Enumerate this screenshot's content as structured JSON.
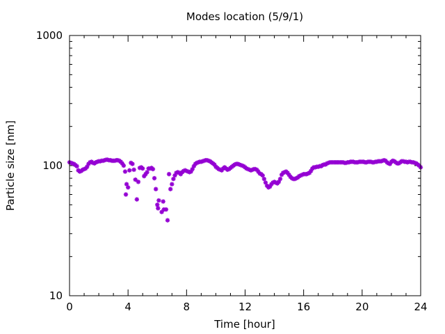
{
  "chart_data": {
    "type": "scatter",
    "title": "Modes location (5/9/1)",
    "xlabel": "Time [hour]",
    "ylabel": "Particle size [nm]",
    "xlim": [
      0,
      24
    ],
    "ylim": [
      10,
      1000
    ],
    "yscale": "log",
    "x_ticks": [
      0,
      4,
      8,
      12,
      16,
      20,
      24
    ],
    "x_tick_labels": [
      "0",
      "4",
      "8",
      "12",
      "16",
      "20",
      "24"
    ],
    "y_ticks": [
      10,
      100,
      1000
    ],
    "y_tick_labels": [
      "10",
      "100",
      "1000"
    ],
    "grid": false,
    "marker_color": "#9400d3",
    "marker": "asterisk",
    "series": [
      {
        "points": [
          [
            0.0,
            106
          ],
          [
            0.1,
            105
          ],
          [
            0.2,
            104
          ],
          [
            0.3,
            103
          ],
          [
            0.4,
            101
          ],
          [
            0.5,
            99
          ],
          [
            0.6,
            92
          ],
          [
            0.7,
            90
          ],
          [
            0.8,
            91
          ],
          [
            0.9,
            93
          ],
          [
            1.0,
            94
          ],
          [
            1.1,
            95
          ],
          [
            1.2,
            98
          ],
          [
            1.3,
            103
          ],
          [
            1.4,
            106
          ],
          [
            1.5,
            107
          ],
          [
            1.6,
            105
          ],
          [
            1.7,
            104
          ],
          [
            1.8,
            106
          ],
          [
            1.9,
            107
          ],
          [
            2.0,
            108
          ],
          [
            2.1,
            108
          ],
          [
            2.2,
            109
          ],
          [
            2.3,
            109
          ],
          [
            2.4,
            110
          ],
          [
            2.5,
            111
          ],
          [
            2.6,
            111
          ],
          [
            2.7,
            110
          ],
          [
            2.8,
            110
          ],
          [
            2.9,
            109
          ],
          [
            3.0,
            109
          ],
          [
            3.1,
            109
          ],
          [
            3.2,
            110
          ],
          [
            3.3,
            110
          ],
          [
            3.4,
            109
          ],
          [
            3.5,
            107
          ],
          [
            3.6,
            104
          ],
          [
            3.7,
            100
          ],
          [
            3.8,
            90
          ],
          [
            3.9,
            72
          ],
          [
            3.85,
            60
          ],
          [
            4.0,
            68
          ],
          [
            4.1,
            92
          ],
          [
            4.2,
            105
          ],
          [
            4.3,
            103
          ],
          [
            4.4,
            93
          ],
          [
            4.5,
            78
          ],
          [
            4.6,
            55
          ],
          [
            4.7,
            75
          ],
          [
            4.8,
            96
          ],
          [
            4.9,
            97
          ],
          [
            5.0,
            95
          ],
          [
            5.1,
            83
          ],
          [
            5.2,
            86
          ],
          [
            5.3,
            89
          ],
          [
            5.4,
            95
          ],
          [
            5.5,
            95
          ],
          [
            5.6,
            96
          ],
          [
            5.7,
            94
          ],
          [
            5.8,
            80
          ],
          [
            5.9,
            66
          ],
          [
            6.0,
            50
          ],
          [
            6.05,
            47
          ],
          [
            6.1,
            54
          ],
          [
            6.3,
            44
          ],
          [
            6.4,
            53
          ],
          [
            6.45,
            46
          ],
          [
            6.6,
            46
          ],
          [
            6.7,
            38
          ],
          [
            6.8,
            86
          ],
          [
            6.9,
            66
          ],
          [
            7.0,
            72
          ],
          [
            7.1,
            79
          ],
          [
            7.2,
            84
          ],
          [
            7.3,
            88
          ],
          [
            7.4,
            89
          ],
          [
            7.5,
            88
          ],
          [
            7.6,
            86
          ],
          [
            7.7,
            89
          ],
          [
            7.8,
            91
          ],
          [
            7.9,
            92
          ],
          [
            8.0,
            91
          ],
          [
            8.1,
            90
          ],
          [
            8.2,
            89
          ],
          [
            8.3,
            90
          ],
          [
            8.4,
            94
          ],
          [
            8.5,
            99
          ],
          [
            8.6,
            103
          ],
          [
            8.7,
            105
          ],
          [
            8.8,
            106
          ],
          [
            8.9,
            107
          ],
          [
            9.0,
            107
          ],
          [
            9.1,
            108
          ],
          [
            9.2,
            109
          ],
          [
            9.3,
            110
          ],
          [
            9.4,
            110
          ],
          [
            9.5,
            109
          ],
          [
            9.6,
            108
          ],
          [
            9.7,
            106
          ],
          [
            9.8,
            104
          ],
          [
            9.9,
            102
          ],
          [
            10.0,
            98
          ],
          [
            10.1,
            96
          ],
          [
            10.2,
            94
          ],
          [
            10.3,
            93
          ],
          [
            10.4,
            92
          ],
          [
            10.5,
            95
          ],
          [
            10.6,
            97
          ],
          [
            10.7,
            95
          ],
          [
            10.8,
            93
          ],
          [
            10.9,
            94
          ],
          [
            11.0,
            96
          ],
          [
            11.1,
            98
          ],
          [
            11.2,
            100
          ],
          [
            11.3,
            102
          ],
          [
            11.4,
            103
          ],
          [
            11.5,
            103
          ],
          [
            11.6,
            102
          ],
          [
            11.7,
            101
          ],
          [
            11.8,
            100
          ],
          [
            11.9,
            99
          ],
          [
            12.0,
            97
          ],
          [
            12.1,
            95
          ],
          [
            12.2,
            94
          ],
          [
            12.3,
            93
          ],
          [
            12.4,
            92
          ],
          [
            12.5,
            93
          ],
          [
            12.6,
            94
          ],
          [
            12.7,
            94
          ],
          [
            12.8,
            93
          ],
          [
            12.9,
            90
          ],
          [
            13.0,
            87
          ],
          [
            13.1,
            86
          ],
          [
            13.2,
            84
          ],
          [
            13.3,
            79
          ],
          [
            13.4,
            74
          ],
          [
            13.5,
            70
          ],
          [
            13.6,
            68
          ],
          [
            13.7,
            69
          ],
          [
            13.8,
            72
          ],
          [
            13.9,
            74
          ],
          [
            14.0,
            75
          ],
          [
            14.1,
            74
          ],
          [
            14.2,
            73
          ],
          [
            14.3,
            75
          ],
          [
            14.4,
            79
          ],
          [
            14.5,
            85
          ],
          [
            14.6,
            88
          ],
          [
            14.7,
            89
          ],
          [
            14.8,
            90
          ],
          [
            14.9,
            88
          ],
          [
            15.0,
            85
          ],
          [
            15.1,
            82
          ],
          [
            15.2,
            80
          ],
          [
            15.3,
            79
          ],
          [
            15.4,
            79
          ],
          [
            15.5,
            80
          ],
          [
            15.6,
            81
          ],
          [
            15.7,
            83
          ],
          [
            15.8,
            84
          ],
          [
            15.9,
            85
          ],
          [
            16.0,
            86
          ],
          [
            16.1,
            86
          ],
          [
            16.2,
            86
          ],
          [
            16.3,
            87
          ],
          [
            16.4,
            88
          ],
          [
            16.5,
            91
          ],
          [
            16.6,
            95
          ],
          [
            16.7,
            97
          ],
          [
            16.8,
            97
          ],
          [
            16.9,
            98
          ],
          [
            17.0,
            98
          ],
          [
            17.1,
            99
          ],
          [
            17.2,
            99
          ],
          [
            17.3,
            101
          ],
          [
            17.4,
            102
          ],
          [
            17.5,
            102
          ],
          [
            17.6,
            104
          ],
          [
            17.7,
            105
          ],
          [
            17.8,
            106
          ],
          [
            17.9,
            106
          ],
          [
            18.0,
            106
          ],
          [
            18.1,
            106
          ],
          [
            18.2,
            106
          ],
          [
            18.3,
            106
          ],
          [
            18.4,
            106
          ],
          [
            18.5,
            106
          ],
          [
            18.6,
            106
          ],
          [
            18.7,
            106
          ],
          [
            18.8,
            105
          ],
          [
            18.9,
            105
          ],
          [
            19.0,
            106
          ],
          [
            19.1,
            106
          ],
          [
            19.2,
            107
          ],
          [
            19.3,
            107
          ],
          [
            19.4,
            107
          ],
          [
            19.5,
            106
          ],
          [
            19.6,
            106
          ],
          [
            19.7,
            106
          ],
          [
            19.8,
            107
          ],
          [
            19.9,
            107
          ],
          [
            20.0,
            107
          ],
          [
            20.1,
            107
          ],
          [
            20.2,
            106
          ],
          [
            20.3,
            106
          ],
          [
            20.4,
            107
          ],
          [
            20.5,
            107
          ],
          [
            20.6,
            107
          ],
          [
            20.7,
            106
          ],
          [
            20.8,
            106
          ],
          [
            20.9,
            107
          ],
          [
            21.0,
            107
          ],
          [
            21.1,
            108
          ],
          [
            21.2,
            108
          ],
          [
            21.3,
            108
          ],
          [
            21.4,
            109
          ],
          [
            21.5,
            110
          ],
          [
            21.6,
            109
          ],
          [
            21.7,
            106
          ],
          [
            21.8,
            104
          ],
          [
            21.9,
            103
          ],
          [
            22.0,
            107
          ],
          [
            22.1,
            109
          ],
          [
            22.2,
            108
          ],
          [
            22.3,
            106
          ],
          [
            22.4,
            104
          ],
          [
            22.5,
            104
          ],
          [
            22.6,
            106
          ],
          [
            22.7,
            108
          ],
          [
            22.8,
            108
          ],
          [
            22.9,
            107
          ],
          [
            23.0,
            107
          ],
          [
            23.1,
            106
          ],
          [
            23.2,
            107
          ],
          [
            23.3,
            107
          ],
          [
            23.4,
            106
          ],
          [
            23.5,
            106
          ],
          [
            23.6,
            105
          ],
          [
            23.7,
            104
          ],
          [
            23.8,
            102
          ],
          [
            23.9,
            100
          ],
          [
            24.0,
            97
          ]
        ]
      }
    ]
  }
}
